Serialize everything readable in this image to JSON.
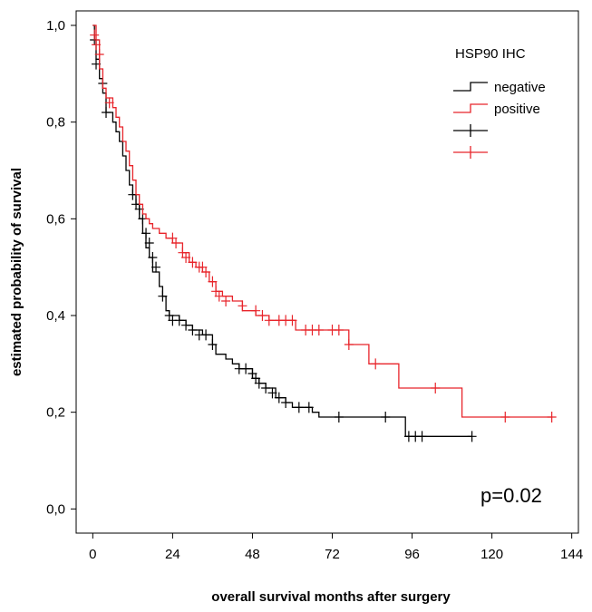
{
  "chart_data": {
    "type": "line",
    "subtype": "kaplan-meier",
    "xlabel": "overall survival months after surgery",
    "ylabel": "estimated probability of survival",
    "xlim": [
      -5,
      146
    ],
    "ylim": [
      -0.05,
      1.03
    ],
    "xticks": [
      0,
      24,
      48,
      72,
      96,
      120,
      144
    ],
    "yticks": [
      0.0,
      0.2,
      0.4,
      0.6,
      0.8,
      1.0
    ],
    "ytick_labels": [
      "0,0",
      "0,2",
      "0,4",
      "0,6",
      "0,8",
      "1,0"
    ],
    "legend": {
      "title": "HSP90 IHC",
      "placement": "top-right",
      "entries": [
        {
          "label": "negative",
          "color": "#000000",
          "kind": "line"
        },
        {
          "label": "positive",
          "color": "#e8242a",
          "kind": "line"
        },
        {
          "label": "",
          "color": "#000000",
          "kind": "censor"
        },
        {
          "label": "",
          "color": "#e8242a",
          "kind": "censor"
        }
      ]
    },
    "annotation": "p=0.02",
    "series": [
      {
        "name": "negative",
        "color": "#000000",
        "steps": [
          [
            0,
            1.0
          ],
          [
            0.5,
            0.97
          ],
          [
            1,
            0.93
          ],
          [
            2,
            0.89
          ],
          [
            3,
            0.86
          ],
          [
            4,
            0.82
          ],
          [
            6,
            0.8
          ],
          [
            7,
            0.78
          ],
          [
            8,
            0.76
          ],
          [
            9,
            0.73
          ],
          [
            10,
            0.7
          ],
          [
            11,
            0.67
          ],
          [
            12,
            0.65
          ],
          [
            13,
            0.63
          ],
          [
            14,
            0.6
          ],
          [
            15,
            0.57
          ],
          [
            16,
            0.54
          ],
          [
            17,
            0.52
          ],
          [
            18,
            0.49
          ],
          [
            20,
            0.46
          ],
          [
            21,
            0.44
          ],
          [
            22,
            0.41
          ],
          [
            23,
            0.4
          ],
          [
            26,
            0.39
          ],
          [
            28,
            0.38
          ],
          [
            30,
            0.37
          ],
          [
            33,
            0.36
          ],
          [
            36,
            0.34
          ],
          [
            37,
            0.32
          ],
          [
            40,
            0.31
          ],
          [
            42,
            0.3
          ],
          [
            44,
            0.29
          ],
          [
            48,
            0.27
          ],
          [
            50,
            0.26
          ],
          [
            52,
            0.25
          ],
          [
            55,
            0.23
          ],
          [
            58,
            0.22
          ],
          [
            60,
            0.21
          ],
          [
            66,
            0.2
          ],
          [
            68,
            0.19
          ],
          [
            94,
            0.15
          ],
          [
            114,
            0.15
          ]
        ],
        "censored": [
          [
            0.5,
            0.97
          ],
          [
            1,
            0.92
          ],
          [
            3,
            0.88
          ],
          [
            4,
            0.82
          ],
          [
            12,
            0.65
          ],
          [
            13,
            0.63
          ],
          [
            14,
            0.62
          ],
          [
            15,
            0.6
          ],
          [
            16,
            0.57
          ],
          [
            17,
            0.55
          ],
          [
            18,
            0.52
          ],
          [
            19,
            0.5
          ],
          [
            21,
            0.44
          ],
          [
            23,
            0.4
          ],
          [
            24,
            0.39
          ],
          [
            26,
            0.39
          ],
          [
            28,
            0.38
          ],
          [
            30,
            0.37
          ],
          [
            32,
            0.36
          ],
          [
            34,
            0.36
          ],
          [
            36,
            0.34
          ],
          [
            44,
            0.29
          ],
          [
            46,
            0.29
          ],
          [
            48,
            0.28
          ],
          [
            49,
            0.27
          ],
          [
            50,
            0.26
          ],
          [
            52,
            0.25
          ],
          [
            54,
            0.24
          ],
          [
            56,
            0.23
          ],
          [
            58,
            0.22
          ],
          [
            62,
            0.21
          ],
          [
            65,
            0.21
          ],
          [
            74,
            0.19
          ],
          [
            88,
            0.19
          ],
          [
            95,
            0.15
          ],
          [
            97,
            0.15
          ],
          [
            99,
            0.15
          ],
          [
            114,
            0.15
          ]
        ]
      },
      {
        "name": "positive",
        "color": "#e8242a",
        "steps": [
          [
            0,
            1.0
          ],
          [
            1,
            0.97
          ],
          [
            2,
            0.91
          ],
          [
            3,
            0.87
          ],
          [
            4,
            0.85
          ],
          [
            6,
            0.83
          ],
          [
            7,
            0.81
          ],
          [
            8,
            0.79
          ],
          [
            9,
            0.76
          ],
          [
            10,
            0.74
          ],
          [
            11,
            0.71
          ],
          [
            12,
            0.68
          ],
          [
            13,
            0.65
          ],
          [
            14,
            0.63
          ],
          [
            15,
            0.61
          ],
          [
            16,
            0.6
          ],
          [
            17,
            0.59
          ],
          [
            18,
            0.58
          ],
          [
            20,
            0.57
          ],
          [
            22,
            0.56
          ],
          [
            24,
            0.55
          ],
          [
            27,
            0.53
          ],
          [
            29,
            0.51
          ],
          [
            31,
            0.5
          ],
          [
            33,
            0.49
          ],
          [
            35,
            0.47
          ],
          [
            37,
            0.45
          ],
          [
            39,
            0.44
          ],
          [
            42,
            0.43
          ],
          [
            45,
            0.41
          ],
          [
            49,
            0.4
          ],
          [
            53,
            0.39
          ],
          [
            61,
            0.37
          ],
          [
            70,
            0.37
          ],
          [
            77,
            0.34
          ],
          [
            83,
            0.3
          ],
          [
            92,
            0.25
          ],
          [
            111,
            0.19
          ],
          [
            138,
            0.19
          ]
        ],
        "censored": [
          [
            0.5,
            0.98
          ],
          [
            1,
            0.96
          ],
          [
            2,
            0.94
          ],
          [
            5,
            0.84
          ],
          [
            24,
            0.56
          ],
          [
            25,
            0.55
          ],
          [
            27,
            0.53
          ],
          [
            28,
            0.52
          ],
          [
            30,
            0.51
          ],
          [
            32,
            0.5
          ],
          [
            33,
            0.5
          ],
          [
            34,
            0.49
          ],
          [
            36,
            0.47
          ],
          [
            37,
            0.45
          ],
          [
            38,
            0.44
          ],
          [
            40,
            0.43
          ],
          [
            45,
            0.42
          ],
          [
            49,
            0.41
          ],
          [
            51,
            0.4
          ],
          [
            53,
            0.39
          ],
          [
            56,
            0.39
          ],
          [
            58,
            0.39
          ],
          [
            60,
            0.39
          ],
          [
            64,
            0.37
          ],
          [
            66,
            0.37
          ],
          [
            68,
            0.37
          ],
          [
            72,
            0.37
          ],
          [
            74,
            0.37
          ],
          [
            77,
            0.34
          ],
          [
            85,
            0.3
          ],
          [
            103,
            0.25
          ],
          [
            124,
            0.19
          ],
          [
            138,
            0.19
          ]
        ]
      }
    ]
  }
}
